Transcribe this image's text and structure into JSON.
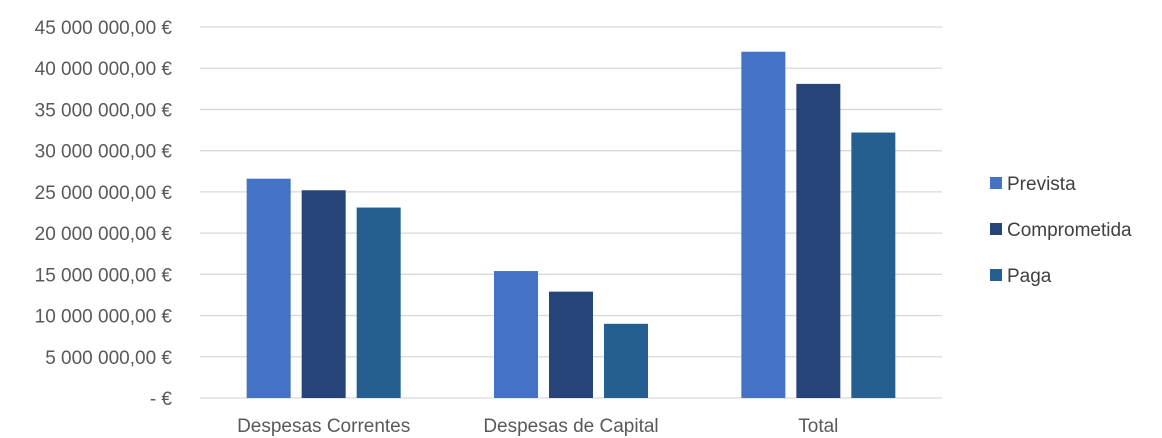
{
  "chart_data": {
    "type": "bar",
    "title": "",
    "xlabel": "",
    "ylabel": "",
    "categories": [
      "Despesas Correntes",
      "Despesas de Capital",
      "Total"
    ],
    "series": [
      {
        "name": "Prevista",
        "color": "#4472C4",
        "values": [
          26600000,
          15400000,
          42000000
        ]
      },
      {
        "name": "Comprometida",
        "color": "#264478",
        "values": [
          25200000,
          12900000,
          38100000
        ]
      },
      {
        "name": "Paga",
        "color": "#255E91",
        "values": [
          23100000,
          9000000,
          32200000
        ]
      }
    ],
    "ylim": [
      0,
      45000000
    ],
    "y_tick_labels": [
      "-  €",
      "5 000 000,00 €",
      "10 000 000,00 €",
      "15 000 000,00 €",
      "20 000 000,00 €",
      "25 000 000,00 €",
      "30 000 000,00 €",
      "35 000 000,00 €",
      "40 000 000,00 €",
      "45 000 000,00 €"
    ],
    "grid": true,
    "gridline_color": "#D9D9D9",
    "legend_position": "right"
  }
}
